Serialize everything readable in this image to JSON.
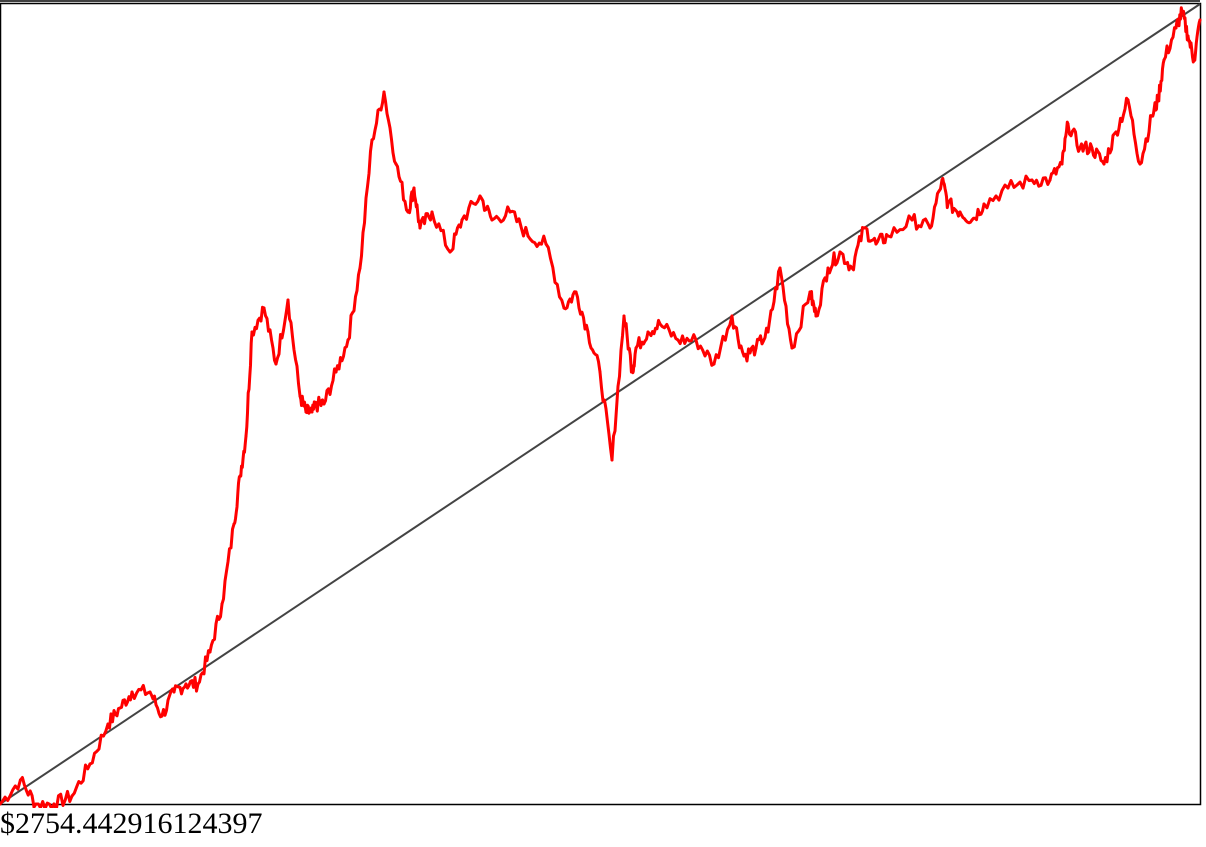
{
  "price_readout": "$2754.442916124397",
  "colors": {
    "price_line": "#ff0000",
    "trend_line": "#444444",
    "frame": "#000000",
    "background": "#ffffff"
  },
  "chart_data": [
    {
      "type": "line",
      "title": "",
      "xlabel": "",
      "ylabel": "",
      "grid": false,
      "legend": "none",
      "xlim": [
        0,
        1
      ],
      "ylim": [
        0,
        1
      ],
      "series": [
        {
          "values_note_omitted": "",
          "x": [
            0.0,
            0.017,
            0.03,
            0.045,
            0.06,
            0.075,
            0.09,
            0.1,
            0.11,
            0.125,
            0.135,
            0.145,
            0.155,
            0.165,
            0.175,
            0.185,
            0.195,
            0.2,
            0.205,
            0.21,
            0.22,
            0.23,
            0.24,
            0.25,
            0.255,
            0.26,
            0.265,
            0.27,
            0.28,
            0.29,
            0.3,
            0.31,
            0.32,
            0.33,
            0.34,
            0.345,
            0.35,
            0.36,
            0.375,
            0.385,
            0.4,
            0.41,
            0.425,
            0.44,
            0.455,
            0.47,
            0.48,
            0.49,
            0.5,
            0.51,
            0.52,
            0.527,
            0.53,
            0.54,
            0.55,
            0.565,
            0.58,
            0.595,
            0.61,
            0.62,
            0.63,
            0.64,
            0.65,
            0.66,
            0.675,
            0.68,
            0.69,
            0.7,
            0.71,
            0.72,
            0.73,
            0.74,
            0.76,
            0.775,
            0.785,
            0.79,
            0.8,
            0.81,
            0.82,
            0.84,
            0.86,
            0.875,
            0.885,
            0.89,
            0.9,
            0.91,
            0.92,
            0.93,
            0.94,
            0.95,
            0.96,
            0.965,
            0.97,
            0.98,
            0.985,
            0.99,
            0.995,
            1.0
          ],
          "y": [
            0.0,
            0.03,
            0.0,
            0.0,
            0.01,
            0.05,
            0.1,
            0.12,
            0.14,
            0.14,
            0.11,
            0.14,
            0.15,
            0.15,
            0.19,
            0.25,
            0.35,
            0.41,
            0.46,
            0.59,
            0.62,
            0.55,
            0.63,
            0.51,
            0.49,
            0.49,
            0.5,
            0.5,
            0.54,
            0.58,
            0.67,
            0.83,
            0.89,
            0.8,
            0.74,
            0.77,
            0.72,
            0.74,
            0.69,
            0.73,
            0.76,
            0.73,
            0.74,
            0.71,
            0.7,
            0.62,
            0.64,
            0.59,
            0.54,
            0.43,
            0.61,
            0.54,
            0.57,
            0.59,
            0.6,
            0.58,
            0.58,
            0.55,
            0.61,
            0.56,
            0.57,
            0.59,
            0.67,
            0.57,
            0.64,
            0.61,
            0.67,
            0.69,
            0.67,
            0.72,
            0.7,
            0.71,
            0.73,
            0.72,
            0.78,
            0.75,
            0.74,
            0.73,
            0.75,
            0.77,
            0.78,
            0.78,
            0.8,
            0.85,
            0.82,
            0.82,
            0.8,
            0.84,
            0.88,
            0.8,
            0.86,
            0.88,
            0.93,
            0.97,
            0.99,
            0.96,
            0.93,
            0.98
          ]
        },
        {
          "x": [
            0.0,
            1.0
          ],
          "y": [
            0.0,
            1.0
          ]
        }
      ]
    }
  ]
}
